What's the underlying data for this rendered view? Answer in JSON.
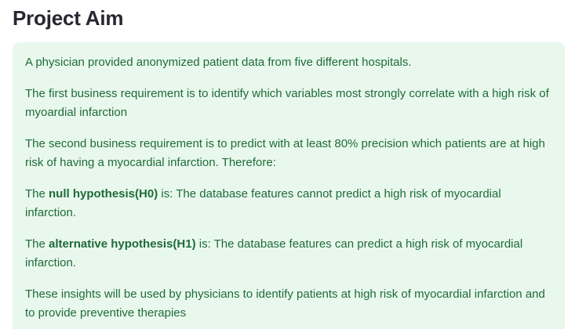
{
  "header": {
    "title": "Project Aim"
  },
  "alert": {
    "p1": "A physician provided anonymized patient data from five different hospitals.",
    "p2": "The first business requirement is to identify which variables most strongly correlate with a high risk of myoardial infarction",
    "p3": "The second business requirement is to predict with at least 80% precision which patients are at high risk of having a myocardial infarction. Therefore:",
    "p4": {
      "prefix": "The ",
      "bold": "null hypothesis(H0)",
      "suffix": " is: The database features cannot predict a high risk of myocardial infarction."
    },
    "p5": {
      "prefix": "The ",
      "bold": "alternative hypothesis(H1)",
      "suffix": " is: The database features can predict a high risk of myocardial infarction."
    },
    "p6": "These insights will be used by physicians to identify patients at high risk of myocardial infarction and to provide preventive therapies"
  },
  "colors": {
    "alert_background": "#e9f8ec",
    "alert_text": "#1e6b3a",
    "title_text": "#262730"
  }
}
